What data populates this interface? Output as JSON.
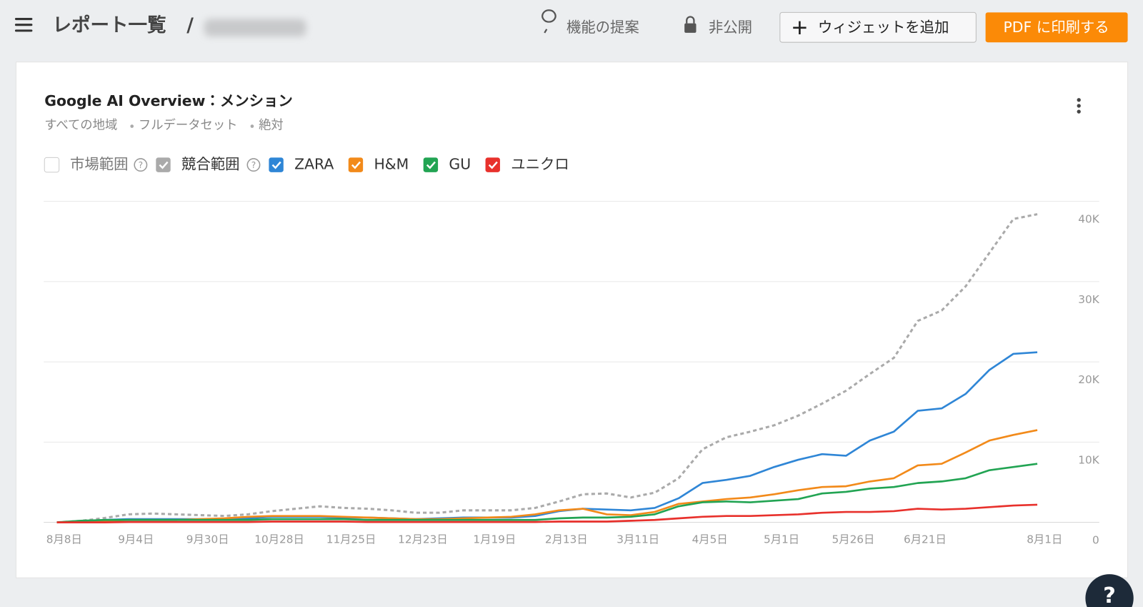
{
  "header": {
    "breadcrumb": "レポート一覧",
    "separator": "/",
    "suggest": "機能の提案",
    "visibility": "非公開",
    "add_widget": "ウィジェットを追加",
    "print_pdf": "PDF に印刷する"
  },
  "widget": {
    "subtitle": [
      "すべての地域",
      "フルデータセット",
      "絶対"
    ],
    "hidden_series": [
      "市場範囲"
    ]
  },
  "help_button": "?",
  "chart_data": {
    "type": "line",
    "title": "Google AI Overview：メンション",
    "categories": [
      "8月8日",
      null,
      null,
      "9月4日",
      null,
      null,
      "9月30日",
      null,
      null,
      "10月28日",
      null,
      null,
      "11月25日",
      null,
      null,
      "12月23日",
      null,
      null,
      "1月19日",
      null,
      null,
      "2月13日",
      null,
      null,
      "3月11日",
      null,
      null,
      "4月5日",
      null,
      null,
      "5月1日",
      null,
      null,
      "5月26日",
      null,
      null,
      "6月21日",
      null,
      null,
      null,
      null,
      "8月1日"
    ],
    "series": [
      {
        "name": "競合範囲",
        "color": "#aaaaaa",
        "dash": true,
        "values": [
          0,
          180,
          550,
          1000,
          1100,
          1000,
          900,
          800,
          1000,
          1400,
          1700,
          2000,
          1800,
          1700,
          1500,
          1200,
          1200,
          1500,
          1500,
          1500,
          1800,
          2600,
          3500,
          3600,
          3100,
          3700,
          5500,
          9100,
          10600,
          11300,
          12100,
          13300,
          14800,
          16400,
          18500,
          20500,
          25100,
          26400,
          29400,
          33600,
          37800,
          38400
        ]
      },
      {
        "name": "ZARA",
        "color": "#2f86d6",
        "values": [
          0,
          100,
          300,
          400,
          400,
          400,
          400,
          400,
          500,
          700,
          700,
          700,
          600,
          600,
          500,
          400,
          500,
          600,
          600,
          600,
          800,
          1400,
          1700,
          1600,
          1500,
          1800,
          3000,
          4900,
          5300,
          5800,
          6900,
          7800,
          8500,
          8300,
          10200,
          11300,
          13900,
          14200,
          16000,
          19000,
          21000,
          21200
        ]
      },
      {
        "name": "H&M",
        "color": "#f28a1a",
        "values": [
          0,
          100,
          200,
          300,
          300,
          300,
          400,
          500,
          700,
          800,
          800,
          800,
          700,
          600,
          500,
          400,
          400,
          500,
          600,
          700,
          1000,
          1500,
          1700,
          1000,
          900,
          1300,
          2300,
          2600,
          2900,
          3100,
          3500,
          4000,
          4400,
          4500,
          5100,
          5500,
          7100,
          7300,
          8700,
          10200,
          10900,
          11500
        ]
      },
      {
        "name": "GU",
        "color": "#22a453",
        "values": [
          0,
          200,
          300,
          300,
          300,
          300,
          300,
          300,
          300,
          400,
          400,
          400,
          400,
          300,
          300,
          300,
          300,
          300,
          300,
          300,
          300,
          500,
          600,
          600,
          700,
          1000,
          2000,
          2500,
          2600,
          2500,
          2700,
          2900,
          3600,
          3800,
          4200,
          4400,
          4900,
          5100,
          5500,
          6500,
          6900,
          7300
        ]
      },
      {
        "name": "ユニクロ",
        "color": "#e8312c",
        "values": [
          0,
          0,
          0,
          50,
          50,
          50,
          50,
          50,
          50,
          100,
          100,
          100,
          100,
          50,
          50,
          50,
          50,
          50,
          50,
          50,
          50,
          100,
          100,
          100,
          200,
          300,
          500,
          700,
          800,
          800,
          900,
          1000,
          1200,
          1300,
          1300,
          1400,
          1700,
          1600,
          1700,
          1900,
          2100,
          2200
        ]
      }
    ],
    "ylim": [
      0,
      40000
    ],
    "yticks": [
      0,
      {
        "value": 10000,
        "label": "10K"
      },
      {
        "value": 20000,
        "label": "20K"
      },
      {
        "value": 30000,
        "label": "30K"
      },
      {
        "value": 40000,
        "label": "40K"
      }
    ],
    "grid": true
  }
}
